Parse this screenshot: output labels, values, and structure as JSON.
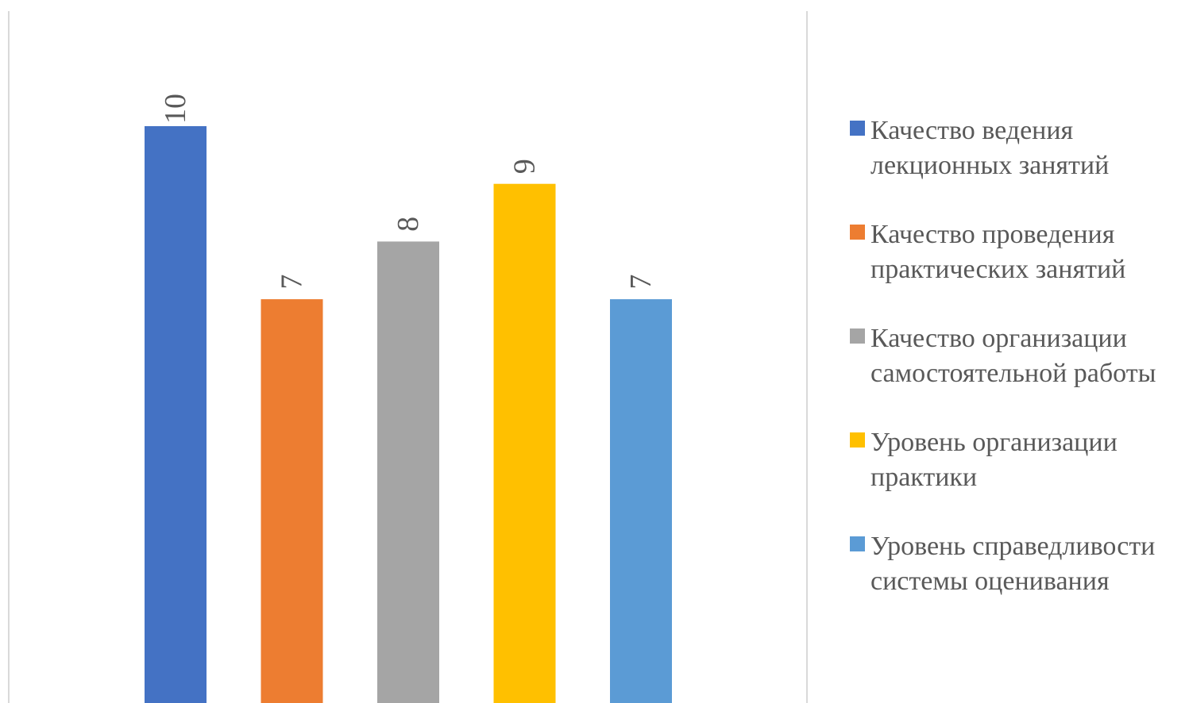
{
  "chart_data": {
    "type": "bar",
    "categories": [
      "Качество ведения лекционных занятий",
      "Качество проведения практических занятий",
      "Качество организации самостоятельной работы",
      "Уровень организации практики",
      "Уровень справедливости системы оценивания"
    ],
    "values": [
      10,
      7,
      8,
      9,
      7
    ],
    "data_labels": [
      "10",
      "7",
      "8",
      "9",
      "7"
    ],
    "colors": [
      "#4472C4",
      "#ED7D31",
      "#A5A5A5",
      "#FFC000",
      "#5B9BD5"
    ],
    "title": "",
    "xlabel": "",
    "ylabel": "",
    "ylim": [
      0,
      10
    ],
    "grid": false,
    "legend_position": "right",
    "data_label_orientation": "rotated"
  },
  "legend": {
    "items": [
      {
        "label": "Качество ведения лекционных занятий",
        "color": "#4472C4"
      },
      {
        "label": "Качество проведения практических занятий",
        "color": "#ED7D31"
      },
      {
        "label": "Качество организации самостоятельной работы",
        "color": "#A5A5A5"
      },
      {
        "label": "Уровень организации практики",
        "color": "#FFC000"
      },
      {
        "label": "Уровень справедливости системы оценивания",
        "color": "#5B9BD5"
      }
    ]
  }
}
